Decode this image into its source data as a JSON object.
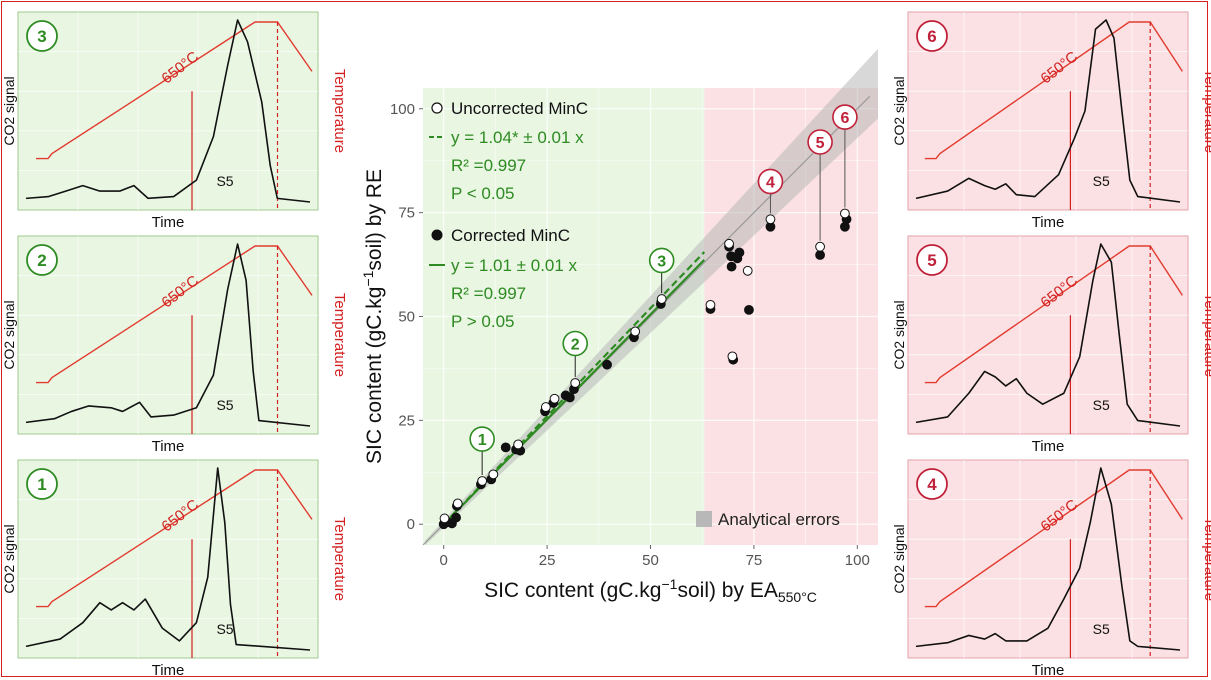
{
  "chart_data": [
    {
      "type": "scatter",
      "xlabel": "SIC content (gC.kg",
      "xlabel_sup": "−1",
      "xlabel_tail": "soil) by EA",
      "xlabel_sub": "550°C",
      "ylabel": "SIC content (gC.kg",
      "ylabel_sup": "−1",
      "ylabel_tail": "soil) by RE",
      "xlim": [
        -5,
        105
      ],
      "ylim": [
        -5,
        105
      ],
      "xticks": [
        0,
        25,
        50,
        75,
        100
      ],
      "yticks": [
        0,
        25,
        50,
        75,
        100
      ],
      "x_tick_labels": [
        "0",
        "25",
        "50",
        "75",
        "100"
      ],
      "y_tick_labels": [
        "0",
        "25",
        "50",
        "75",
        "100"
      ],
      "grid": true,
      "background_split_x": 63,
      "colors": {
        "green_zone": "#e8f6e2",
        "red_zone": "#fbe1e3",
        "green": "#2e8b22",
        "red": "#c0213a",
        "band": "#b8b8b8"
      },
      "legend_uncorrected": {
        "label": "Uncorrected MinC",
        "equation": "y = 1.04* ± 0.01 x",
        "r2": "R² =0.997",
        "p": "P < 0.05"
      },
      "legend_corrected": {
        "label": "Corrected MinC",
        "equation": "y = 1.01 ± 0.01 x",
        "r2": "R² =0.997",
        "p": "P > 0.05"
      },
      "legend_errors": "Analytical errors",
      "fit_lines": [
        {
          "style": "dashed",
          "slope": 1.04,
          "x": [
            0,
            63
          ]
        },
        {
          "style": "solid",
          "slope": 1.01,
          "x": [
            0,
            63
          ]
        }
      ],
      "series": [
        {
          "name": "Corrected MinC",
          "points": [
            [
              0,
              0
            ],
            [
              0.5,
              0.8
            ],
            [
              1,
              0.5
            ],
            [
              2,
              0.2
            ],
            [
              3,
              1.6
            ],
            [
              3.2,
              4.4
            ],
            [
              9,
              9.6
            ],
            [
              11.5,
              10.8
            ],
            [
              15,
              18.5
            ],
            [
              17.5,
              18
            ],
            [
              18.5,
              17.7
            ],
            [
              24.5,
              27.2
            ],
            [
              26.5,
              29.2
            ],
            [
              29.5,
              31
            ],
            [
              30.5,
              30.5
            ],
            [
              31.5,
              32.5
            ],
            [
              39.5,
              38.4
            ],
            [
              46,
              45
            ],
            [
              52.5,
              53
            ],
            [
              64.5,
              51.8
            ],
            [
              69,
              66.8
            ],
            [
              69.5,
              64.5
            ],
            [
              69.6,
              62
            ],
            [
              70,
              39.6
            ],
            [
              71,
              64
            ],
            [
              71.5,
              65.4
            ],
            [
              73.8,
              51.6
            ],
            [
              79,
              71.6
            ],
            [
              91,
              64.8
            ],
            [
              97,
              71.6
            ],
            [
              97.4,
              73.4
            ]
          ]
        },
        {
          "name": "Uncorrected MinC",
          "points": [
            [
              0.2,
              1.4
            ],
            [
              3.4,
              5
            ],
            [
              9.3,
              10.4
            ],
            [
              12,
              12
            ],
            [
              18,
              19.2
            ],
            [
              24.7,
              28.2
            ],
            [
              26.8,
              30.2
            ],
            [
              31.8,
              34
            ],
            [
              52.7,
              54.2
            ],
            [
              46.3,
              46.4
            ],
            [
              64.5,
              52.8
            ],
            [
              69,
              67.5
            ],
            [
              69.8,
              40.4
            ],
            [
              73.5,
              61
            ],
            [
              79,
              73.4
            ],
            [
              91,
              66.8
            ],
            [
              97,
              74.8
            ]
          ]
        }
      ],
      "highlight_labels": [
        {
          "label": "1",
          "x": 9.3,
          "y": 10.4,
          "zone": "green"
        },
        {
          "label": "2",
          "x": 31.8,
          "y": 34,
          "zone": "green"
        },
        {
          "label": "3",
          "x": 52.7,
          "y": 54.2,
          "zone": "green"
        },
        {
          "label": "4",
          "x": 79,
          "y": 73.4,
          "zone": "red"
        },
        {
          "label": "5",
          "x": 91,
          "y": 66.8,
          "zone": "red"
        },
        {
          "label": "6",
          "x": 97,
          "y": 74.8,
          "zone": "red"
        }
      ]
    },
    {
      "type": "line",
      "panel": "3",
      "zone": "green",
      "xlabel": "Time",
      "ylabel": "CO2 signal",
      "y2label": "Temperature",
      "temperature_label": "650°C",
      "peak_label": "S5",
      "co2_signal": [
        [
          0,
          0.02
        ],
        [
          0.08,
          0.03
        ],
        [
          0.14,
          0.06
        ],
        [
          0.2,
          0.09
        ],
        [
          0.26,
          0.06
        ],
        [
          0.33,
          0.06
        ],
        [
          0.38,
          0.09
        ],
        [
          0.43,
          0.02
        ],
        [
          0.52,
          0.03
        ],
        [
          0.6,
          0.12
        ],
        [
          0.66,
          0.36
        ],
        [
          0.71,
          0.75
        ],
        [
          0.745,
          1.0
        ],
        [
          0.78,
          0.88
        ],
        [
          0.83,
          0.55
        ],
        [
          0.86,
          0.2
        ],
        [
          0.885,
          0.02
        ],
        [
          1.0,
          0.0
        ]
      ]
    },
    {
      "type": "line",
      "panel": "2",
      "zone": "green",
      "xlabel": "Time",
      "ylabel": "CO2 signal",
      "y2label": "Temperature",
      "temperature_label": "650°C",
      "peak_label": "S5",
      "co2_signal": [
        [
          0,
          0.02
        ],
        [
          0.1,
          0.04
        ],
        [
          0.16,
          0.08
        ],
        [
          0.22,
          0.11
        ],
        [
          0.3,
          0.1
        ],
        [
          0.34,
          0.08
        ],
        [
          0.4,
          0.13
        ],
        [
          0.44,
          0.05
        ],
        [
          0.52,
          0.06
        ],
        [
          0.6,
          0.1
        ],
        [
          0.66,
          0.28
        ],
        [
          0.71,
          0.75
        ],
        [
          0.745,
          1.0
        ],
        [
          0.775,
          0.8
        ],
        [
          0.8,
          0.3
        ],
        [
          0.82,
          0.03
        ],
        [
          1.0,
          0.0
        ]
      ]
    },
    {
      "type": "line",
      "panel": "1",
      "zone": "green",
      "xlabel": "Time",
      "ylabel": "CO2 signal",
      "y2label": "Temperature",
      "temperature_label": "650°C",
      "peak_label": "S5",
      "co2_signal": [
        [
          0,
          0.02
        ],
        [
          0.12,
          0.06
        ],
        [
          0.2,
          0.15
        ],
        [
          0.26,
          0.26
        ],
        [
          0.3,
          0.22
        ],
        [
          0.34,
          0.26
        ],
        [
          0.38,
          0.22
        ],
        [
          0.42,
          0.28
        ],
        [
          0.48,
          0.12
        ],
        [
          0.54,
          0.05
        ],
        [
          0.6,
          0.15
        ],
        [
          0.64,
          0.4
        ],
        [
          0.675,
          1.0
        ],
        [
          0.7,
          0.7
        ],
        [
          0.72,
          0.25
        ],
        [
          0.74,
          0.03
        ],
        [
          1.0,
          0.0
        ]
      ]
    },
    {
      "type": "line",
      "panel": "6",
      "zone": "red",
      "xlabel": "Time",
      "ylabel": "CO2 signal",
      "y2label": "Temperature",
      "temperature_label": "650°C",
      "peak_label": "S5",
      "co2_signal": [
        [
          0,
          0.02
        ],
        [
          0.12,
          0.06
        ],
        [
          0.2,
          0.13
        ],
        [
          0.26,
          0.09
        ],
        [
          0.3,
          0.07
        ],
        [
          0.34,
          0.1
        ],
        [
          0.38,
          0.04
        ],
        [
          0.45,
          0.03
        ],
        [
          0.54,
          0.15
        ],
        [
          0.6,
          0.35
        ],
        [
          0.64,
          0.5
        ],
        [
          0.68,
          0.95
        ],
        [
          0.72,
          1.0
        ],
        [
          0.75,
          0.9
        ],
        [
          0.78,
          0.5
        ],
        [
          0.81,
          0.12
        ],
        [
          0.84,
          0.03
        ],
        [
          1.0,
          0.0
        ]
      ]
    },
    {
      "type": "line",
      "panel": "5",
      "zone": "red",
      "xlabel": "Time",
      "ylabel": "CO2 signal",
      "y2label": "Temperature",
      "temperature_label": "650°C",
      "peak_label": "S5",
      "co2_signal": [
        [
          0,
          0.02
        ],
        [
          0.12,
          0.05
        ],
        [
          0.2,
          0.18
        ],
        [
          0.26,
          0.3
        ],
        [
          0.3,
          0.27
        ],
        [
          0.34,
          0.22
        ],
        [
          0.38,
          0.26
        ],
        [
          0.42,
          0.18
        ],
        [
          0.48,
          0.12
        ],
        [
          0.56,
          0.18
        ],
        [
          0.62,
          0.38
        ],
        [
          0.67,
          0.8
        ],
        [
          0.7,
          1.0
        ],
        [
          0.74,
          0.9
        ],
        [
          0.77,
          0.5
        ],
        [
          0.8,
          0.12
        ],
        [
          0.84,
          0.03
        ],
        [
          1.0,
          0.0
        ]
      ]
    },
    {
      "type": "line",
      "panel": "4",
      "zone": "red",
      "xlabel": "Time",
      "ylabel": "CO2 signal",
      "y2label": "Temperature",
      "temperature_label": "650°C",
      "peak_label": "S5",
      "co2_signal": [
        [
          0,
          0.02
        ],
        [
          0.12,
          0.04
        ],
        [
          0.2,
          0.08
        ],
        [
          0.26,
          0.06
        ],
        [
          0.3,
          0.09
        ],
        [
          0.34,
          0.05
        ],
        [
          0.42,
          0.05
        ],
        [
          0.5,
          0.12
        ],
        [
          0.56,
          0.28
        ],
        [
          0.62,
          0.45
        ],
        [
          0.66,
          0.7
        ],
        [
          0.7,
          1.0
        ],
        [
          0.74,
          0.8
        ],
        [
          0.78,
          0.35
        ],
        [
          0.81,
          0.05
        ],
        [
          0.84,
          0.02
        ],
        [
          1.0,
          0.0
        ]
      ]
    }
  ]
}
